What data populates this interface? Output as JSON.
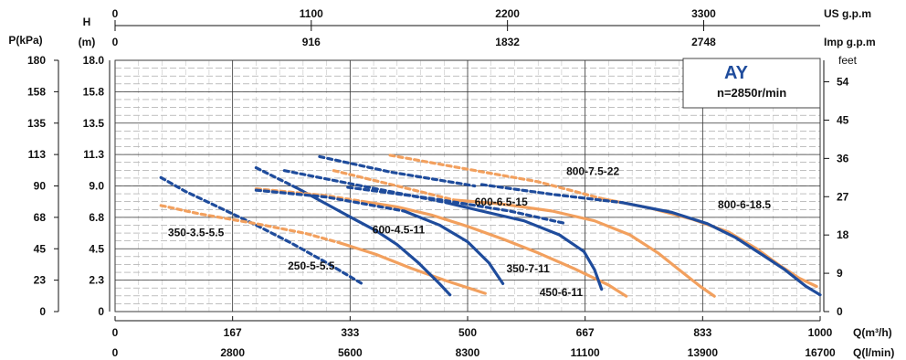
{
  "chart_data": {
    "type": "line",
    "brand": "AY",
    "speed": "n=2850r/min",
    "axes": {
      "bottom_primary": {
        "label": "Q(m³/h)",
        "ticks": [
          "0",
          "167",
          "333",
          "500",
          "667",
          "833",
          "1000"
        ],
        "range": [
          0,
          1000
        ]
      },
      "bottom_secondary": {
        "label": "Q(l/min)",
        "ticks": [
          "0",
          "2800",
          "5600",
          "8300",
          "11100",
          "13900",
          "16700"
        ]
      },
      "top_primary": {
        "label": "US g.p.m",
        "ticks": [
          "0",
          "1100",
          "2200",
          "3300"
        ]
      },
      "top_secondary": {
        "label": "Imp g.p.m",
        "ticks": [
          "0",
          "916",
          "1832",
          "2748"
        ]
      },
      "left_primary": {
        "label": "H",
        "unit": "(m)",
        "ticks": [
          "0",
          "2.3",
          "4.5",
          "6.8",
          "9.0",
          "11.3",
          "13.5",
          "15.8",
          "18.0"
        ],
        "range": [
          0,
          18
        ]
      },
      "left_secondary": {
        "label": "P(kPa)",
        "ticks": [
          "0",
          "23",
          "45",
          "68",
          "90",
          "113",
          "135",
          "158",
          "180"
        ]
      },
      "right": {
        "label": "feet",
        "ticks": [
          "0",
          "9",
          "18",
          "27",
          "36",
          "45",
          "54"
        ]
      }
    },
    "grid": true,
    "colors": {
      "orange": "#f2a05e",
      "blue": "#1f4c9c",
      "blue_dashed": "#2a5fb8"
    },
    "series": [
      {
        "name": "350-3.5-5.5",
        "color": "blue",
        "style": "dashed",
        "points": [
          [
            65,
            9.6
          ],
          [
            100,
            8.6
          ],
          [
            150,
            7.4
          ],
          [
            200,
            6.2
          ],
          [
            250,
            4.9
          ],
          [
            300,
            3.5
          ],
          [
            350,
            2.0
          ]
        ]
      },
      {
        "name": "",
        "color": "orange",
        "style": "dashed",
        "points": [
          [
            65,
            7.6
          ],
          [
            120,
            7.0
          ],
          [
            200,
            6.3
          ],
          [
            270,
            5.6
          ],
          [
            320,
            4.9
          ]
        ]
      },
      {
        "name": "",
        "color": "orange",
        "style": "solid",
        "points": [
          [
            320,
            4.9
          ],
          [
            370,
            4.1
          ],
          [
            420,
            3.1
          ],
          [
            470,
            2.2
          ],
          [
            525,
            1.3
          ]
        ]
      },
      {
        "name": "250-5-5.5",
        "color": "blue",
        "style": "dashed",
        "points": [
          [
            200,
            10.3
          ],
          [
            260,
            8.8
          ]
        ]
      },
      {
        "name": "250-5-5.5",
        "color": "blue",
        "style": "solid",
        "points": [
          [
            260,
            8.8
          ],
          [
            300,
            7.7
          ],
          [
            340,
            6.6
          ],
          [
            370,
            5.8
          ],
          [
            400,
            4.8
          ],
          [
            430,
            3.5
          ],
          [
            460,
            2.0
          ],
          [
            475,
            1.2
          ]
        ]
      },
      {
        "name": "",
        "color": "orange",
        "style": "dashed",
        "points": [
          [
            200,
            8.8
          ],
          [
            300,
            8.3
          ],
          [
            350,
            7.9
          ]
        ]
      },
      {
        "name": "",
        "color": "orange",
        "style": "solid",
        "points": [
          [
            350,
            7.9
          ],
          [
            400,
            7.5
          ],
          [
            450,
            6.9
          ],
          [
            500,
            6.1
          ],
          [
            550,
            5.2
          ],
          [
            600,
            4.2
          ],
          [
            650,
            3.1
          ],
          [
            700,
            1.9
          ],
          [
            725,
            1.1
          ]
        ]
      },
      {
        "name": "600-4.5-11",
        "color": "blue",
        "style": "dashed",
        "points": [
          [
            200,
            8.7
          ],
          [
            300,
            8.2
          ],
          [
            410,
            7.2
          ]
        ]
      },
      {
        "name": "600-4.5-11",
        "color": "blue",
        "style": "solid",
        "points": [
          [
            410,
            7.2
          ],
          [
            460,
            6.2
          ],
          [
            500,
            5.0
          ],
          [
            530,
            3.5
          ],
          [
            550,
            2.0
          ]
        ]
      },
      {
        "name": "350-7-11",
        "color": "blue",
        "style": "dashed",
        "points": [
          [
            240,
            10.1
          ],
          [
            350,
            9.0
          ],
          [
            470,
            7.8
          ]
        ]
      },
      {
        "name": "350-7-11",
        "color": "blue",
        "style": "solid",
        "points": [
          [
            470,
            7.8
          ],
          [
            520,
            7.2
          ],
          [
            580,
            6.5
          ],
          [
            630,
            5.5
          ],
          [
            665,
            4.3
          ],
          [
            680,
            3.0
          ],
          [
            690,
            1.6
          ]
        ]
      },
      {
        "name": "450-6-11",
        "color": "blue",
        "style": "dashed",
        "points": [
          [
            290,
            11.1
          ],
          [
            390,
            10.0
          ],
          [
            510,
            9.0
          ]
        ]
      },
      {
        "name": "600-6.5-15",
        "color": "orange",
        "style": "dashed",
        "points": [
          [
            310,
            10.1
          ],
          [
            400,
            9.0
          ],
          [
            480,
            8.0
          ]
        ]
      },
      {
        "name": "600-6.5-15",
        "color": "orange",
        "style": "solid",
        "points": [
          [
            480,
            8.0
          ],
          [
            550,
            7.7
          ],
          [
            620,
            7.2
          ],
          [
            680,
            6.5
          ],
          [
            730,
            5.5
          ],
          [
            770,
            4.2
          ],
          [
            800,
            3.0
          ],
          [
            830,
            1.8
          ],
          [
            850,
            1.1
          ]
        ]
      },
      {
        "name": "800-7.5-22",
        "color": "blue",
        "style": "dashed",
        "points": [
          [
            330,
            8.9
          ],
          [
            450,
            8.1
          ],
          [
            560,
            7.2
          ],
          [
            640,
            6.3
          ]
        ]
      },
      {
        "name": "800-7.5-22",
        "color": "orange",
        "style": "dashed",
        "points": [
          [
            390,
            11.2
          ],
          [
            500,
            10.2
          ],
          [
            600,
            9.3
          ],
          [
            690,
            8.1
          ]
        ]
      },
      {
        "name": "800-7.5-22",
        "color": "orange",
        "style": "solid",
        "points": [
          [
            690,
            8.1
          ],
          [
            760,
            7.4
          ],
          [
            820,
            6.6
          ],
          [
            870,
            5.7
          ],
          [
            910,
            4.5
          ],
          [
            940,
            3.4
          ],
          [
            970,
            2.4
          ],
          [
            995,
            1.8
          ]
        ]
      },
      {
        "name": "800-6-18.5",
        "color": "blue",
        "style": "dashed",
        "points": [
          [
            520,
            9.1
          ],
          [
            620,
            8.4
          ],
          [
            720,
            7.8
          ]
        ]
      },
      {
        "name": "800-6-18.5",
        "color": "blue",
        "style": "solid",
        "points": [
          [
            720,
            7.8
          ],
          [
            790,
            7.1
          ],
          [
            840,
            6.3
          ],
          [
            880,
            5.3
          ],
          [
            920,
            4.0
          ],
          [
            950,
            3.0
          ],
          [
            980,
            1.8
          ],
          [
            1000,
            1.2
          ]
        ]
      }
    ],
    "annotations": [
      {
        "text": "800-7.5-22",
        "q": 640,
        "h": 9.8
      },
      {
        "text": "600-6.5-15",
        "q": 510,
        "h": 7.6
      },
      {
        "text": "800-6-18.5",
        "q": 855,
        "h": 7.4
      },
      {
        "text": "350-3.5-5.5",
        "q": 75,
        "h": 5.4
      },
      {
        "text": "600-4.5-11",
        "q": 365,
        "h": 5.6
      },
      {
        "text": "250-5-5.5",
        "q": 245,
        "h": 3.0
      },
      {
        "text": "350-7-11",
        "q": 555,
        "h": 2.8
      },
      {
        "text": "450-6-11",
        "q": 602,
        "h": 1.1
      }
    ]
  }
}
